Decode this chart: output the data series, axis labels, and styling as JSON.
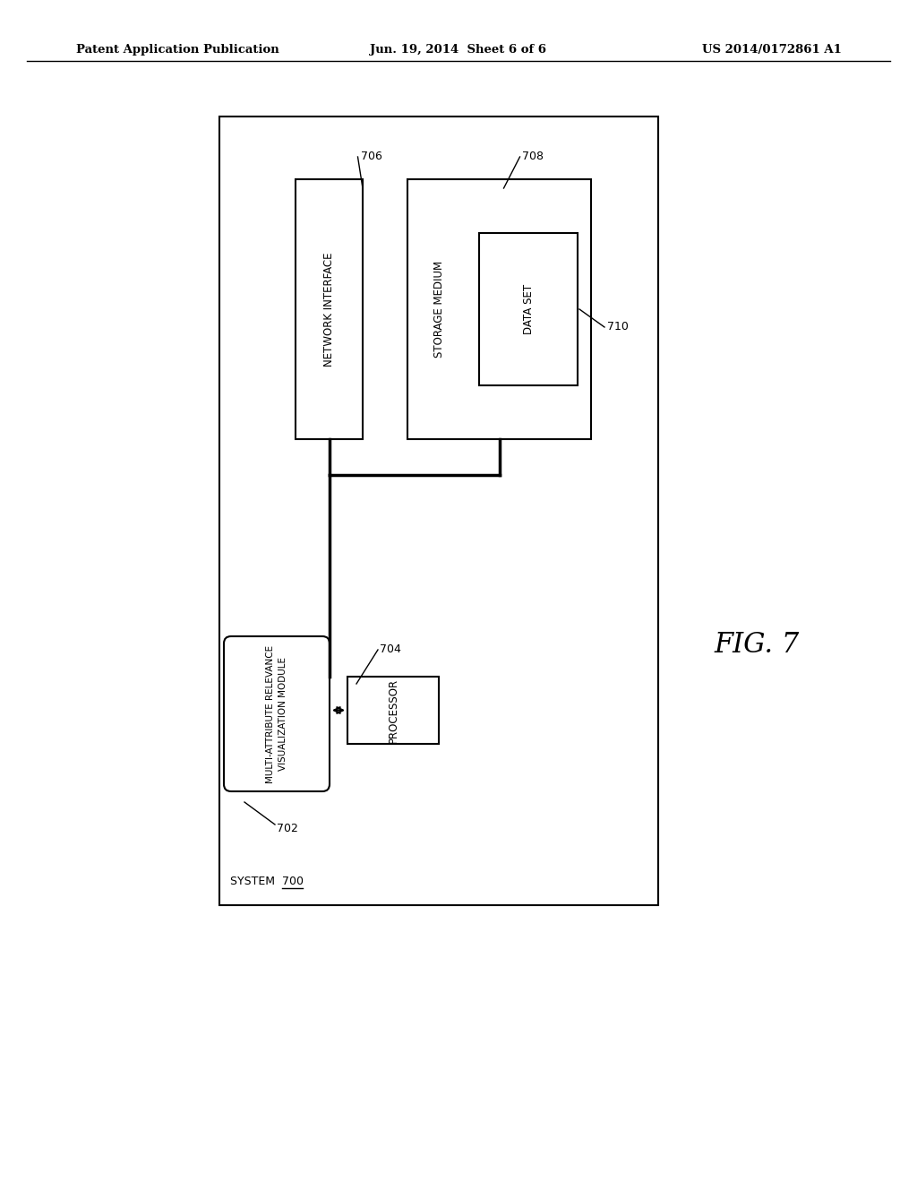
{
  "bg_color": "#ffffff",
  "header_left": "Patent Application Publication",
  "header_center": "Jun. 19, 2014  Sheet 6 of 6",
  "header_right": "US 2014/0172861 A1",
  "fig_label": "FIG. 7",
  "system_label": "SYSTEM  700",
  "network_interface_label": "NETWORK INTERFACE",
  "network_interface_ref": "706",
  "storage_medium_label": "STORAGE MEDIUM",
  "storage_medium_ref": "708",
  "dataset_label": "DATA SET",
  "dataset_ref": "710",
  "processor_label": "PROCESSOR",
  "processor_ref": "704",
  "module_label": "MULTI-ATTRIBUTE RELEVANCE\nVISUALIZATION MODULE",
  "module_ref": "702"
}
